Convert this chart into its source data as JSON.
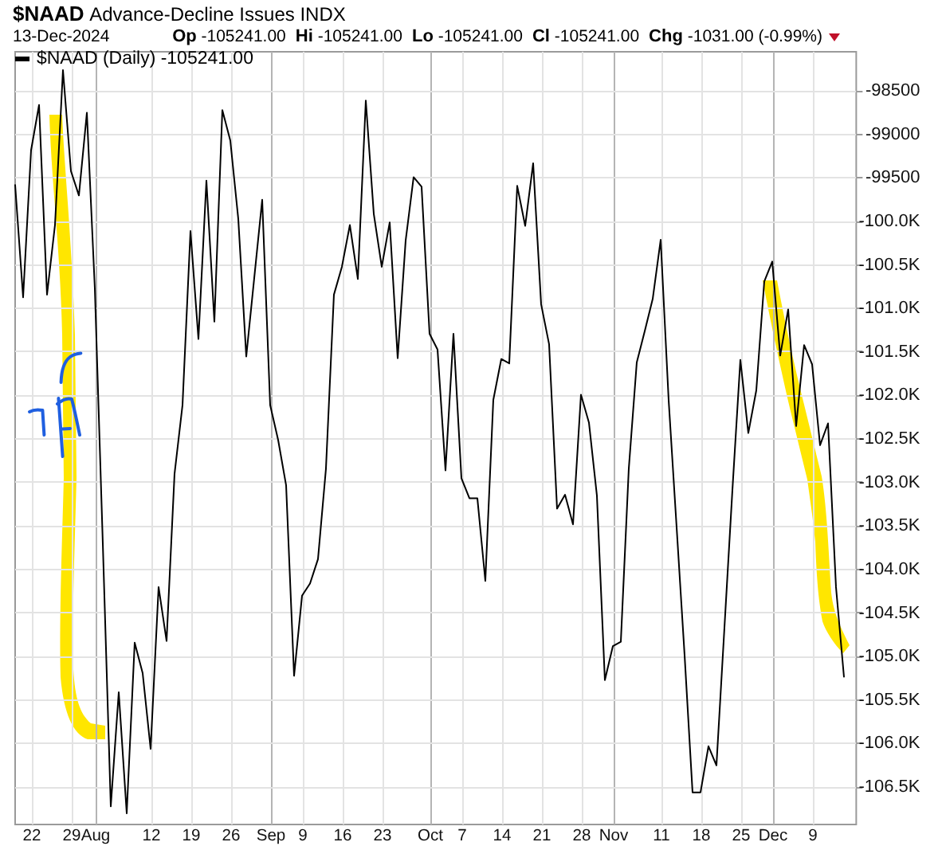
{
  "chart_data": {
    "type": "line",
    "title": "$NAAD Advance-Decline Issues INDX",
    "subtitle": "13-Dec-2024",
    "annotations": [
      "Op -105241.00",
      "Hi -105241.00",
      "Lo -105241.00",
      "Cl -105241.00",
      "Chg -1031.00 (-0.99%)"
    ],
    "categories": [
      null,
      null,
      "22",
      null,
      null,
      null,
      null,
      "29",
      null,
      null,
      "Aug",
      null,
      null,
      null,
      null,
      null,
      null,
      "12",
      null,
      null,
      null,
      null,
      "19",
      null,
      null,
      null,
      null,
      "26",
      null,
      null,
      null,
      null,
      "Sep",
      null,
      null,
      null,
      "9",
      null,
      null,
      null,
      null,
      "16",
      null,
      null,
      null,
      null,
      "23",
      null,
      null,
      null,
      null,
      null,
      "Oct",
      null,
      null,
      null,
      "7",
      null,
      null,
      null,
      null,
      "14",
      null,
      null,
      null,
      null,
      "21",
      null,
      null,
      null,
      null,
      "28",
      null,
      null,
      null,
      "Nov",
      null,
      null,
      null,
      null,
      null,
      "11",
      null,
      null,
      null,
      null,
      "18",
      null,
      null,
      null,
      null,
      "25",
      null,
      null,
      null,
      "Dec",
      null,
      null,
      null,
      null,
      "9",
      null,
      null,
      null,
      null
    ],
    "series": [
      {
        "name": "$NAAD (Daily) -105241.00",
        "color": "#000000",
        "values": [
          -99590,
          -100880,
          -99190,
          -98670,
          -100850,
          -100050,
          -98270,
          -99430,
          -99710,
          -98760,
          -100780,
          -103710,
          -106730,
          -105420,
          -106810,
          -104850,
          -105200,
          -106070,
          -104210,
          -104830,
          -102910,
          -102120,
          -100120,
          -101360,
          -99540,
          -101160,
          -98730,
          -99080,
          -99980,
          -101560,
          -100660,
          -99760,
          -102120,
          -102520,
          -103040,
          -105230,
          -104310,
          -104170,
          -103890,
          -102850,
          -100850,
          -100530,
          -100050,
          -100670,
          -98620,
          -99920,
          -100530,
          -100020,
          -101580,
          -100230,
          -99500,
          -99610,
          -101300,
          -101480,
          -102870,
          -101300,
          -102960,
          -103190,
          -103190,
          -104140,
          -102060,
          -101590,
          -101640,
          -99600,
          -100060,
          -99340,
          -100960,
          -101420,
          -103310,
          -103150,
          -103490,
          -102000,
          -102320,
          -103160,
          -105280,
          -104890,
          -104840,
          -102850,
          -101630,
          -101270,
          -100900,
          -100220,
          -102060,
          -103520,
          -104990,
          -106570,
          -106570,
          -106040,
          -106260,
          -104680,
          -103100,
          -101600,
          -102440,
          -101950,
          -100700,
          -100470,
          -101550,
          -101020,
          -102360,
          -101430,
          -101650,
          -102580,
          -102330,
          -104210,
          -105241
        ]
      }
    ],
    "ylim": [
      -106930,
      -98050
    ],
    "yticks": [
      -98500,
      -99000,
      -99500,
      {
        "value": -100000,
        "label": "-100.0K"
      },
      {
        "value": -100500,
        "label": "-100.5K"
      },
      {
        "value": -101000,
        "label": "-101.0K"
      },
      {
        "value": -101500,
        "label": "-101.5K"
      },
      {
        "value": -102000,
        "label": "-102.0K"
      },
      {
        "value": -102500,
        "label": "-102.5K"
      },
      {
        "value": -103000,
        "label": "-103.0K"
      },
      {
        "value": -103500,
        "label": "-103.5K"
      },
      {
        "value": -104000,
        "label": "-104.0K"
      },
      {
        "value": -104500,
        "label": "-104.5K"
      },
      {
        "value": -105000,
        "label": "-105.0K"
      },
      {
        "value": -105500,
        "label": "-105.5K"
      },
      {
        "value": -106000,
        "label": "-106.0K"
      },
      {
        "value": -106500,
        "label": "-106.5K"
      }
    ],
    "grid": true,
    "legend": "top left"
  }
}
